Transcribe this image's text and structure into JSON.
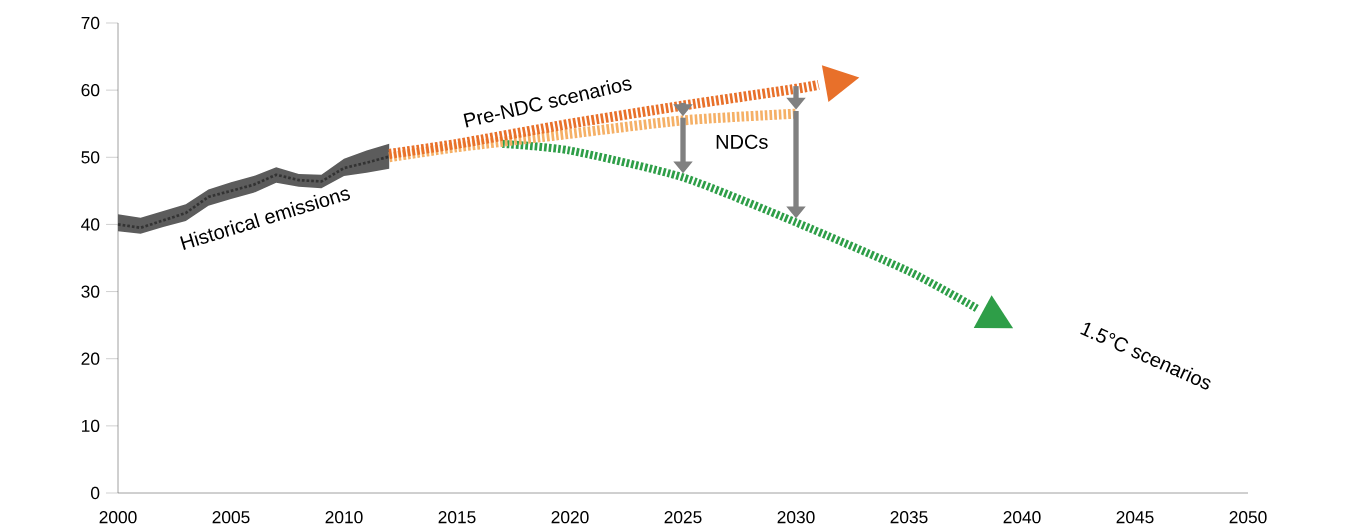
{
  "chart_data": {
    "type": "line",
    "x": [
      2000,
      2001,
      2002,
      2003,
      2004,
      2005,
      2006,
      2007,
      2008,
      2009,
      2010,
      2011,
      2012
    ],
    "series": [
      {
        "color": "#333333",
        "line_style": "dashed",
        "values": [
          40,
          39.5,
          40.6,
          41.7,
          44.1,
          45,
          45.9,
          47.4,
          46.6,
          46.4,
          48.4,
          49.2,
          50.1
        ],
        "lower": [
          39,
          38.6,
          39.6,
          40.5,
          42.8,
          43.8,
          44.7,
          46.2,
          45.6,
          45.4,
          47.2,
          47.7,
          48.3
        ],
        "upper": [
          41.5,
          41,
          42,
          43,
          45.2,
          46.3,
          47.2,
          48.5,
          47.5,
          47.4,
          49.8,
          51,
          52
        ]
      },
      {
        "x": [
          2017,
          2020,
          2025,
          2030,
          2035,
          2038
        ],
        "color": "#2e9e48",
        "line_style": "dashed",
        "values": [
          52,
          51,
          47,
          40.3,
          33,
          27.5
        ]
      },
      {
        "x": [
          2012,
          2015,
          2020,
          2025,
          2030
        ],
        "color": "#f5b066",
        "line_style": "dashed",
        "values": [
          50,
          51.5,
          53.5,
          55.5,
          56.5
        ]
      },
      {
        "x": [
          2012,
          2015,
          2020,
          2025,
          2030,
          2031
        ],
        "color": "#e8702a",
        "line_style": "dashed",
        "values": [
          50.5,
          52,
          55,
          57.7,
          60.2,
          60.8
        ]
      }
    ],
    "xlim": [
      2000,
      2050
    ],
    "xticks": [
      2000,
      2005,
      2010,
      2015,
      2020,
      2025,
      2030,
      2035,
      2040,
      2045,
      2050
    ],
    "ylim": [
      0,
      70
    ],
    "yticks": [
      0,
      10,
      20,
      30,
      40,
      50,
      60,
      70
    ],
    "grid": false,
    "marker": "none",
    "annotations": [
      "Historical emissions",
      "Pre-NDC scenarios",
      "NDCs",
      "1.5°C scenarios"
    ]
  }
}
